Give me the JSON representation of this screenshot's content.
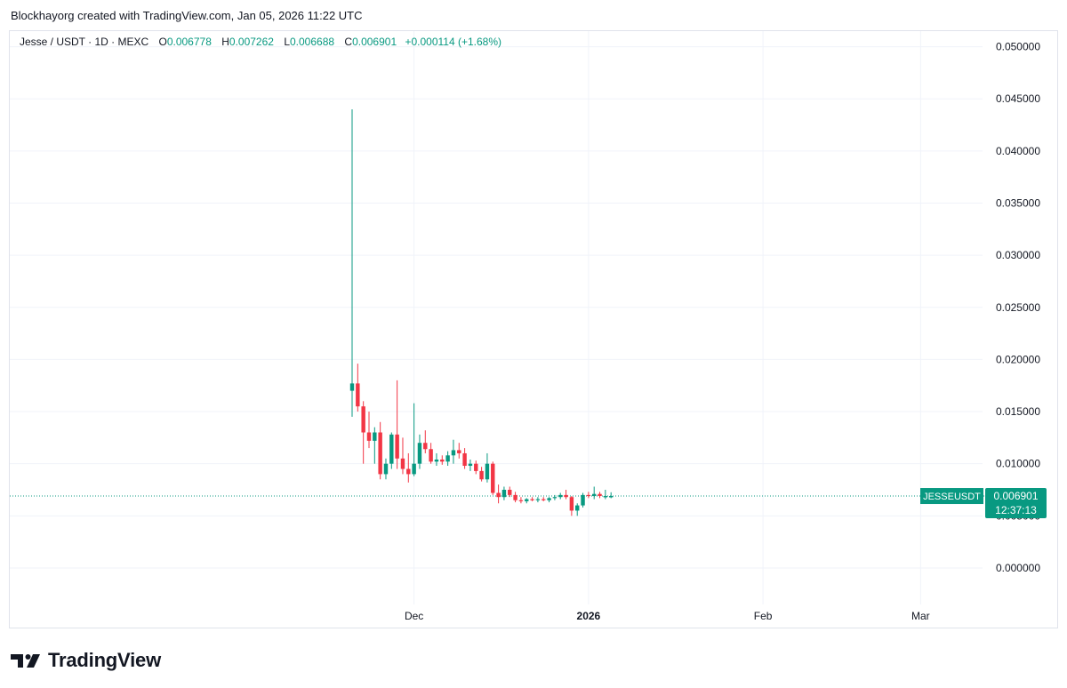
{
  "header": {
    "credit": "Blockhayorg created with TradingView.com, Jan 05, 2026 11:22 UTC"
  },
  "legend": {
    "symbol": "Jesse / USDT · 1D · MEXC",
    "open_label": "O",
    "open": "0.006778",
    "high_label": "H",
    "high": "0.007262",
    "low_label": "L",
    "low": "0.006688",
    "close_label": "C",
    "close": "0.006901",
    "change": "+0.000114 (+1.68%)"
  },
  "price_tag": {
    "ticker": "JESSEUSDT",
    "price": "0.006901",
    "countdown": "12:37:13"
  },
  "footer": {
    "brand": "TradingView"
  },
  "colors": {
    "up": "#089981",
    "down": "#f23645",
    "grid": "#f0f3fa",
    "axis_text": "#131722"
  },
  "chart_data": {
    "type": "candlestick",
    "title": "Jesse / USDT · 1D · MEXC",
    "ylim": [
      -0.0035,
      0.0515
    ],
    "y_ticks": [
      "0.000000",
      "0.005000",
      "0.010000",
      "0.015000",
      "0.020000",
      "0.025000",
      "0.030000",
      "0.035000",
      "0.040000",
      "0.045000",
      "0.050000"
    ],
    "x_ticks": [
      {
        "label": "Dec",
        "date": "2025-12-01",
        "bold": false
      },
      {
        "label": "2026",
        "date": "2026-01-01",
        "bold": true
      },
      {
        "label": "Feb",
        "date": "2026-02-01",
        "bold": false
      },
      {
        "label": "Mar",
        "date": "2026-03-01",
        "bold": false
      }
    ],
    "x_range": [
      "2025-11-20",
      "2026-03-12"
    ],
    "last_price": 0.006901,
    "candles": [
      {
        "date": "2025-11-20",
        "o": 0.017,
        "h": 0.044,
        "l": 0.0145,
        "c": 0.0177
      },
      {
        "date": "2025-11-21",
        "o": 0.0177,
        "h": 0.0196,
        "l": 0.015,
        "c": 0.0155
      },
      {
        "date": "2025-11-22",
        "o": 0.0155,
        "h": 0.016,
        "l": 0.01,
        "c": 0.013
      },
      {
        "date": "2025-11-23",
        "o": 0.013,
        "h": 0.015,
        "l": 0.0115,
        "c": 0.0122
      },
      {
        "date": "2025-11-24",
        "o": 0.0122,
        "h": 0.0135,
        "l": 0.01,
        "c": 0.013
      },
      {
        "date": "2025-11-25",
        "o": 0.013,
        "h": 0.014,
        "l": 0.0085,
        "c": 0.009
      },
      {
        "date": "2025-11-26",
        "o": 0.009,
        "h": 0.0105,
        "l": 0.0085,
        "c": 0.01
      },
      {
        "date": "2025-11-27",
        "o": 0.01,
        "h": 0.013,
        "l": 0.0095,
        "c": 0.0128
      },
      {
        "date": "2025-11-28",
        "o": 0.0128,
        "h": 0.018,
        "l": 0.0095,
        "c": 0.0105
      },
      {
        "date": "2025-11-29",
        "o": 0.0105,
        "h": 0.0125,
        "l": 0.009,
        "c": 0.0095
      },
      {
        "date": "2025-11-30",
        "o": 0.0095,
        "h": 0.011,
        "l": 0.0082,
        "c": 0.009
      },
      {
        "date": "2025-12-01",
        "o": 0.009,
        "h": 0.0158,
        "l": 0.0088,
        "c": 0.01
      },
      {
        "date": "2025-12-02",
        "o": 0.01,
        "h": 0.0128,
        "l": 0.0095,
        "c": 0.012
      },
      {
        "date": "2025-12-03",
        "o": 0.012,
        "h": 0.0132,
        "l": 0.011,
        "c": 0.0114
      },
      {
        "date": "2025-12-04",
        "o": 0.0114,
        "h": 0.012,
        "l": 0.01,
        "c": 0.0102
      },
      {
        "date": "2025-12-05",
        "o": 0.0102,
        "h": 0.011,
        "l": 0.0098,
        "c": 0.0104
      },
      {
        "date": "2025-12-06",
        "o": 0.0104,
        "h": 0.0108,
        "l": 0.0099,
        "c": 0.0102
      },
      {
        "date": "2025-12-07",
        "o": 0.0102,
        "h": 0.0112,
        "l": 0.0098,
        "c": 0.0108
      },
      {
        "date": "2025-12-08",
        "o": 0.0108,
        "h": 0.0123,
        "l": 0.01,
        "c": 0.0113
      },
      {
        "date": "2025-12-09",
        "o": 0.0113,
        "h": 0.012,
        "l": 0.0105,
        "c": 0.011
      },
      {
        "date": "2025-12-10",
        "o": 0.011,
        "h": 0.0115,
        "l": 0.0095,
        "c": 0.0098
      },
      {
        "date": "2025-12-11",
        "o": 0.0098,
        "h": 0.0104,
        "l": 0.0093,
        "c": 0.01
      },
      {
        "date": "2025-12-12",
        "o": 0.01,
        "h": 0.0103,
        "l": 0.009,
        "c": 0.0093
      },
      {
        "date": "2025-12-13",
        "o": 0.0093,
        "h": 0.0097,
        "l": 0.0083,
        "c": 0.0085
      },
      {
        "date": "2025-12-14",
        "o": 0.0085,
        "h": 0.011,
        "l": 0.0082,
        "c": 0.01
      },
      {
        "date": "2025-12-15",
        "o": 0.01,
        "h": 0.0102,
        "l": 0.007,
        "c": 0.0072
      },
      {
        "date": "2025-12-16",
        "o": 0.0072,
        "h": 0.008,
        "l": 0.0062,
        "c": 0.0068
      },
      {
        "date": "2025-12-17",
        "o": 0.0068,
        "h": 0.0078,
        "l": 0.0065,
        "c": 0.0075
      },
      {
        "date": "2025-12-18",
        "o": 0.0075,
        "h": 0.0078,
        "l": 0.0068,
        "c": 0.007
      },
      {
        "date": "2025-12-19",
        "o": 0.007,
        "h": 0.0073,
        "l": 0.0063,
        "c": 0.0065
      },
      {
        "date": "2025-12-20",
        "o": 0.0065,
        "h": 0.0068,
        "l": 0.0062,
        "c": 0.0064
      },
      {
        "date": "2025-12-21",
        "o": 0.0064,
        "h": 0.0067,
        "l": 0.0062,
        "c": 0.0066
      },
      {
        "date": "2025-12-22",
        "o": 0.0066,
        "h": 0.0068,
        "l": 0.0064,
        "c": 0.0065
      },
      {
        "date": "2025-12-23",
        "o": 0.0065,
        "h": 0.0068,
        "l": 0.0063,
        "c": 0.0066
      },
      {
        "date": "2025-12-24",
        "o": 0.0066,
        "h": 0.0068,
        "l": 0.0064,
        "c": 0.0065
      },
      {
        "date": "2025-12-25",
        "o": 0.0065,
        "h": 0.0068,
        "l": 0.0063,
        "c": 0.0067
      },
      {
        "date": "2025-12-26",
        "o": 0.0067,
        "h": 0.007,
        "l": 0.0065,
        "c": 0.0068
      },
      {
        "date": "2025-12-27",
        "o": 0.0068,
        "h": 0.0072,
        "l": 0.0066,
        "c": 0.007
      },
      {
        "date": "2025-12-28",
        "o": 0.007,
        "h": 0.0075,
        "l": 0.0066,
        "c": 0.0068
      },
      {
        "date": "2025-12-29",
        "o": 0.0068,
        "h": 0.0069,
        "l": 0.005,
        "c": 0.0055
      },
      {
        "date": "2025-12-30",
        "o": 0.0055,
        "h": 0.0062,
        "l": 0.005,
        "c": 0.006
      },
      {
        "date": "2025-12-31",
        "o": 0.006,
        "h": 0.0072,
        "l": 0.0058,
        "c": 0.007
      },
      {
        "date": "2026-01-01",
        "o": 0.007,
        "h": 0.0073,
        "l": 0.0067,
        "c": 0.0069
      },
      {
        "date": "2026-01-02",
        "o": 0.0069,
        "h": 0.0078,
        "l": 0.0066,
        "c": 0.0071
      },
      {
        "date": "2026-01-03",
        "o": 0.0071,
        "h": 0.0073,
        "l": 0.0067,
        "c": 0.0069
      },
      {
        "date": "2026-01-04",
        "o": 0.006778,
        "h": 0.0075,
        "l": 0.0066,
        "c": 0.0069
      },
      {
        "date": "2026-01-05",
        "o": 0.006778,
        "h": 0.007262,
        "l": 0.006688,
        "c": 0.006901
      }
    ]
  }
}
